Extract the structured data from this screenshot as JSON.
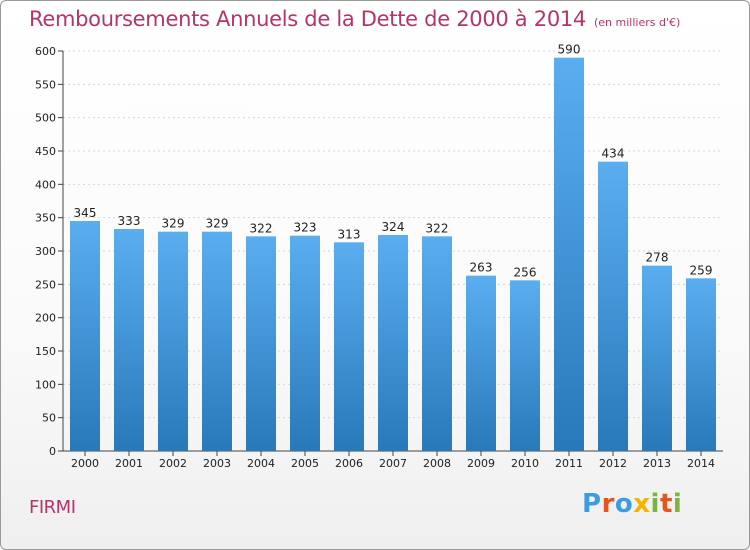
{
  "title": "Remboursements Annuels de la Dette de 2000 à 2014",
  "unit": "(en milliers d'€)",
  "commune": "FIRMI",
  "logo": {
    "letters": [
      "P",
      "r",
      "o",
      "x",
      "i",
      "t",
      "i"
    ],
    "colors": [
      "#3e9be0",
      "#e8541f",
      "#3e9be0",
      "#f4b400",
      "#7cb342",
      "#e8541f",
      "#7cb342"
    ]
  },
  "colors": {
    "bar_top": "#5aaef0",
    "bar_bottom": "#2879ba",
    "title": "#b5346a",
    "grid": "#cfd6e6"
  },
  "chart_data": {
    "type": "bar",
    "title": "Remboursements Annuels de la Dette de 2000 à 2014",
    "xlabel": "",
    "ylabel": "",
    "categories": [
      "2000",
      "2001",
      "2002",
      "2003",
      "2004",
      "2005",
      "2006",
      "2007",
      "2008",
      "2009",
      "2010",
      "2011",
      "2012",
      "2013",
      "2014"
    ],
    "values": [
      345,
      333,
      329,
      329,
      322,
      323,
      313,
      324,
      322,
      263,
      256,
      590,
      434,
      278,
      259
    ],
    "ylim": [
      0,
      600
    ],
    "yticks": [
      0,
      50,
      100,
      150,
      200,
      250,
      300,
      350,
      400,
      450,
      500,
      550,
      600
    ],
    "grid": true,
    "legend": "none"
  }
}
